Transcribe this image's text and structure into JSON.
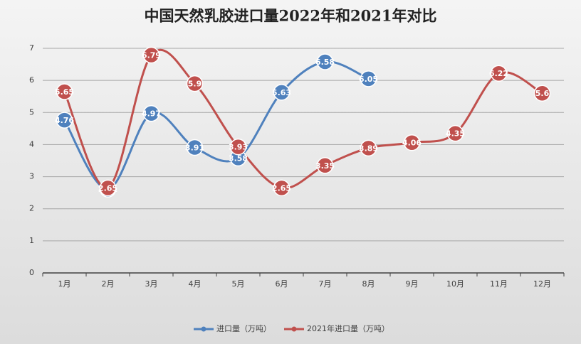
{
  "chart_data": {
    "type": "line",
    "title": "中国天然乳胶进口量2022年和2021年对比",
    "categories": [
      "1月",
      "2月",
      "3月",
      "4月",
      "5月",
      "6月",
      "7月",
      "8月",
      "9月",
      "10月",
      "11月",
      "12月"
    ],
    "series": [
      {
        "name": "进口量（万吨）",
        "color": "#4f81bd",
        "values": [
          4.76,
          2.61,
          4.97,
          3.91,
          3.58,
          5.63,
          6.58,
          6.05,
          null,
          null,
          null,
          null
        ]
      },
      {
        "name": "2021年进口量（万吨）",
        "color": "#c0504d",
        "values": [
          5.65,
          2.65,
          6.79,
          5.9,
          3.93,
          2.65,
          3.35,
          3.89,
          4.06,
          4.35,
          6.22,
          5.6
        ]
      }
    ],
    "ylim": [
      0,
      7
    ],
    "yticks": [
      0,
      1,
      2,
      3,
      4,
      5,
      6,
      7
    ],
    "grid": true,
    "smooth": true,
    "legend": "bottom"
  }
}
